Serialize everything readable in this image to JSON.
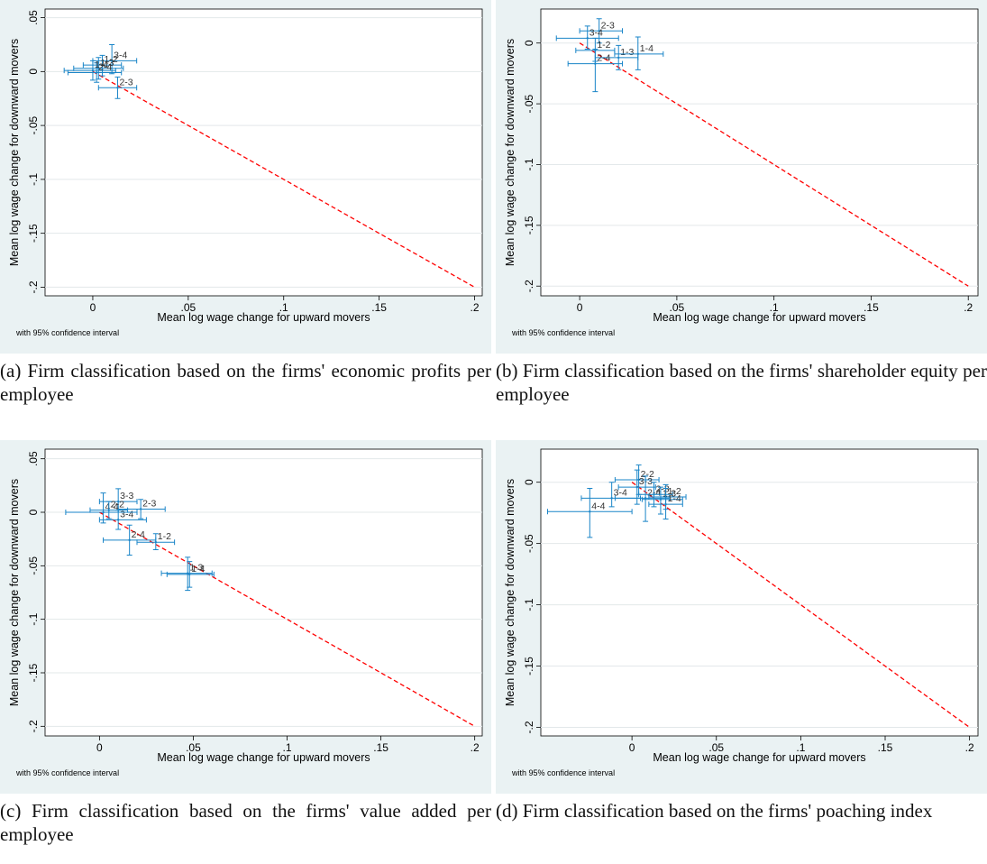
{
  "chart_data": [
    {
      "type": "scatter",
      "caption": "(a) Firm classification based on the firms' economic profits per employee",
      "xlabel": "Mean log wage change for upward movers",
      "ylabel": "Mean log wage change for downward movers",
      "note": "with 95% confidence interval",
      "xlim": [
        -0.025,
        0.204
      ],
      "ylim": [
        -0.208,
        0.058
      ],
      "xticks": [
        0,
        {
          "value": 0.05,
          "label": ".05"
        },
        {
          "value": 0.1,
          "label": ".1"
        },
        {
          "value": 0.15,
          "label": ".15"
        },
        {
          "value": 0.2,
          "label": ".2"
        }
      ],
      "yticks": [
        {
          "value": 0.05,
          "label": ".05"
        },
        0,
        {
          "value": -0.05,
          "label": "-.05"
        },
        {
          "value": -0.1,
          "label": "-.1"
        },
        {
          "value": -0.15,
          "label": "-.15"
        },
        {
          "value": -0.2,
          "label": "-.2"
        }
      ],
      "grid": true,
      "color": "#1a85c8",
      "line_color": "#ff0000",
      "reference_line": {
        "x": [
          0,
          0.2
        ],
        "y": [
          0,
          -0.2
        ]
      },
      "points": [
        {
          "label": "3-4",
          "x": 0.01,
          "y": 0.01,
          "x_ci": [
            0.0,
            0.023
          ],
          "y_ci": [
            -0.002,
            0.025
          ]
        },
        {
          "label": "2-3",
          "x": 0.013,
          "y": -0.015,
          "x_ci": [
            0.003,
            0.023
          ],
          "y_ci": [
            -0.025,
            -0.005
          ]
        },
        {
          "label": "1-2",
          "x": 0.005,
          "y": 0.006,
          "x_ci": [
            -0.005,
            0.015
          ],
          "y_ci": [
            -0.004,
            0.015
          ]
        },
        {
          "label": "1-3",
          "x": 0.003,
          "y": 0.003,
          "x_ci": [
            -0.01,
            0.016
          ],
          "y_ci": [
            -0.007,
            0.013
          ]
        },
        {
          "label": "2-4",
          "x": 0.002,
          "y": -0.001,
          "x_ci": [
            -0.013,
            0.015
          ],
          "y_ci": [
            -0.01,
            0.008
          ]
        },
        {
          "label": "1-4",
          "x": 0.0,
          "y": 0.001,
          "x_ci": [
            -0.015,
            0.012
          ],
          "y_ci": [
            -0.008,
            0.01
          ]
        }
      ]
    },
    {
      "type": "scatter",
      "caption": "(b) Firm classification based on the firms' shareholder equity per employee",
      "xlabel": "Mean log wage change for upward movers",
      "ylabel": "Mean log wage change for downward movers",
      "note": "with 95% confidence interval",
      "xlim": [
        -0.02,
        0.205
      ],
      "ylim": [
        -0.208,
        0.028
      ],
      "xticks": [
        0,
        {
          "value": 0.05,
          "label": ".05"
        },
        {
          "value": 0.1,
          "label": ".1"
        },
        {
          "value": 0.15,
          "label": ".15"
        },
        {
          "value": 0.2,
          "label": ".2"
        }
      ],
      "yticks": [
        0,
        {
          "value": -0.05,
          "label": "-.05"
        },
        {
          "value": -0.1,
          "label": "-.1"
        },
        {
          "value": -0.15,
          "label": "-.15"
        },
        {
          "value": -0.2,
          "label": "-.2"
        }
      ],
      "grid": true,
      "color": "#1a85c8",
      "line_color": "#ff0000",
      "reference_line": {
        "x": [
          0,
          0.2
        ],
        "y": [
          0,
          -0.2
        ]
      },
      "points": [
        {
          "label": "2-3",
          "x": 0.01,
          "y": 0.01,
          "x_ci": [
            0.0,
            0.022
          ],
          "y_ci": [
            0.0,
            0.02
          ]
        },
        {
          "label": "3-4",
          "x": 0.004,
          "y": 0.004,
          "x_ci": [
            -0.012,
            0.02
          ],
          "y_ci": [
            -0.005,
            0.014
          ]
        },
        {
          "label": "1-2",
          "x": 0.008,
          "y": -0.006,
          "x_ci": [
            -0.002,
            0.018
          ],
          "y_ci": [
            -0.015,
            0.004
          ]
        },
        {
          "label": "1-3",
          "x": 0.02,
          "y": -0.012,
          "x_ci": [
            0.008,
            0.03
          ],
          "y_ci": [
            -0.022,
            -0.002
          ]
        },
        {
          "label": "1-4",
          "x": 0.03,
          "y": -0.009,
          "x_ci": [
            0.018,
            0.043
          ],
          "y_ci": [
            -0.022,
            0.005
          ]
        },
        {
          "label": "2-4",
          "x": 0.008,
          "y": -0.017,
          "x_ci": [
            -0.006,
            0.022
          ],
          "y_ci": [
            -0.04,
            -0.005
          ]
        }
      ]
    },
    {
      "type": "scatter",
      "caption": "(c) Firm classification based on the firms' value added per employee",
      "xlabel": "Mean log wage change for upward movers",
      "ylabel": "Mean log wage change for downward movers",
      "note": "with 95% confidence interval",
      "xlim": [
        -0.029,
        0.204
      ],
      "ylim": [
        -0.209,
        0.059
      ],
      "xticks": [
        0,
        {
          "value": 0.05,
          "label": ".05"
        },
        {
          "value": 0.1,
          "label": ".1"
        },
        {
          "value": 0.15,
          "label": ".15"
        },
        {
          "value": 0.2,
          "label": ".2"
        }
      ],
      "yticks": [
        {
          "value": 0.05,
          "label": ".05"
        },
        0,
        {
          "value": -0.05,
          "label": "-.05"
        },
        {
          "value": -0.1,
          "label": "-.1"
        },
        {
          "value": -0.15,
          "label": "-.15"
        },
        {
          "value": -0.2,
          "label": "-.2"
        }
      ],
      "grid": true,
      "color": "#1a85c8",
      "line_color": "#ff0000",
      "reference_line": {
        "x": [
          0,
          0.2
        ],
        "y": [
          0,
          -0.2
        ]
      },
      "points": [
        {
          "label": "3-3",
          "x": 0.01,
          "y": 0.01,
          "x_ci": [
            0.0,
            0.02
          ],
          "y_ci": [
            0.0,
            0.022
          ]
        },
        {
          "label": "2-3",
          "x": 0.022,
          "y": 0.003,
          "x_ci": [
            0.01,
            0.035
          ],
          "y_ci": [
            -0.006,
            0.012
          ]
        },
        {
          "label": "3-4",
          "x": 0.01,
          "y": -0.007,
          "x_ci": [
            0.0,
            0.025
          ],
          "y_ci": [
            -0.016,
            0.002
          ]
        },
        {
          "label": "4-4",
          "x": 0.002,
          "y": 0.0,
          "x_ci": [
            -0.018,
            0.02
          ],
          "y_ci": [
            -0.01,
            0.018
          ]
        },
        {
          "label": "2-2",
          "x": 0.005,
          "y": 0.002,
          "x_ci": [
            -0.005,
            0.015
          ],
          "y_ci": [
            -0.006,
            0.01
          ]
        },
        {
          "label": "2-4",
          "x": 0.016,
          "y": -0.026,
          "x_ci": [
            0.002,
            0.03
          ],
          "y_ci": [
            -0.04,
            -0.012
          ]
        },
        {
          "label": "1-2",
          "x": 0.03,
          "y": -0.028,
          "x_ci": [
            0.02,
            0.04
          ],
          "y_ci": [
            -0.035,
            -0.02
          ]
        },
        {
          "label": "1-3",
          "x": 0.047,
          "y": -0.057,
          "x_ci": [
            0.033,
            0.06
          ],
          "y_ci": [
            -0.073,
            -0.042
          ]
        },
        {
          "label": "1-4",
          "x": 0.048,
          "y": -0.058,
          "x_ci": [
            0.036,
            0.061
          ],
          "y_ci": [
            -0.07,
            -0.046
          ]
        }
      ]
    },
    {
      "type": "scatter",
      "caption": "(d) Firm classification based on the firms' poaching index",
      "xlabel": "Mean log wage change for upward movers",
      "ylabel": "Mean log wage change for downward movers",
      "note": "with 95% confidence interval",
      "xlim": [
        -0.054,
        0.205
      ],
      "ylim": [
        -0.207,
        0.027
      ],
      "xticks": [
        0,
        {
          "value": 0.05,
          "label": ".05"
        },
        {
          "value": 0.1,
          "label": ".1"
        },
        {
          "value": 0.15,
          "label": ".15"
        },
        {
          "value": 0.2,
          "label": ".2"
        }
      ],
      "yticks": [
        0,
        {
          "value": -0.05,
          "label": "-.05"
        },
        {
          "value": -0.1,
          "label": "-.1"
        },
        {
          "value": -0.15,
          "label": "-.15"
        },
        {
          "value": -0.2,
          "label": "-.2"
        }
      ],
      "grid": true,
      "color": "#1a85c8",
      "line_color": "#ff0000",
      "reference_line": {
        "x": [
          0,
          0.2
        ],
        "y": [
          0,
          -0.2
        ]
      },
      "points": [
        {
          "label": "2-2",
          "x": 0.004,
          "y": 0.002,
          "x_ci": [
            -0.01,
            0.016
          ],
          "y_ci": [
            -0.01,
            0.014
          ]
        },
        {
          "label": "3-3",
          "x": 0.003,
          "y": -0.004,
          "x_ci": [
            -0.008,
            0.014
          ],
          "y_ci": [
            -0.018,
            0.01
          ]
        },
        {
          "label": "3-4",
          "x": -0.012,
          "y": -0.013,
          "x_ci": [
            -0.03,
            0.005
          ],
          "y_ci": [
            -0.02,
            0.0
          ]
        },
        {
          "label": "4-4",
          "x": -0.025,
          "y": -0.024,
          "x_ci": [
            -0.05,
            0.0
          ],
          "y_ci": [
            -0.045,
            -0.005
          ]
        },
        {
          "label": "2-4",
          "x": 0.008,
          "y": -0.013,
          "x_ci": [
            -0.01,
            0.022
          ],
          "y_ci": [
            -0.032,
            0.005
          ]
        },
        {
          "label": "2-3",
          "x": 0.013,
          "y": -0.01,
          "x_ci": [
            0.004,
            0.024
          ],
          "y_ci": [
            -0.02,
            0.0
          ]
        },
        {
          "label": "1-2",
          "x": 0.02,
          "y": -0.012,
          "x_ci": [
            0.01,
            0.032
          ],
          "y_ci": [
            -0.022,
            -0.002
          ]
        },
        {
          "label": "1-3",
          "x": 0.017,
          "y": -0.014,
          "x_ci": [
            0.006,
            0.03
          ],
          "y_ci": [
            -0.026,
            -0.004
          ]
        },
        {
          "label": "1-4",
          "x": 0.02,
          "y": -0.018,
          "x_ci": [
            0.01,
            0.03
          ],
          "y_ci": [
            -0.03,
            -0.005
          ]
        }
      ]
    }
  ]
}
